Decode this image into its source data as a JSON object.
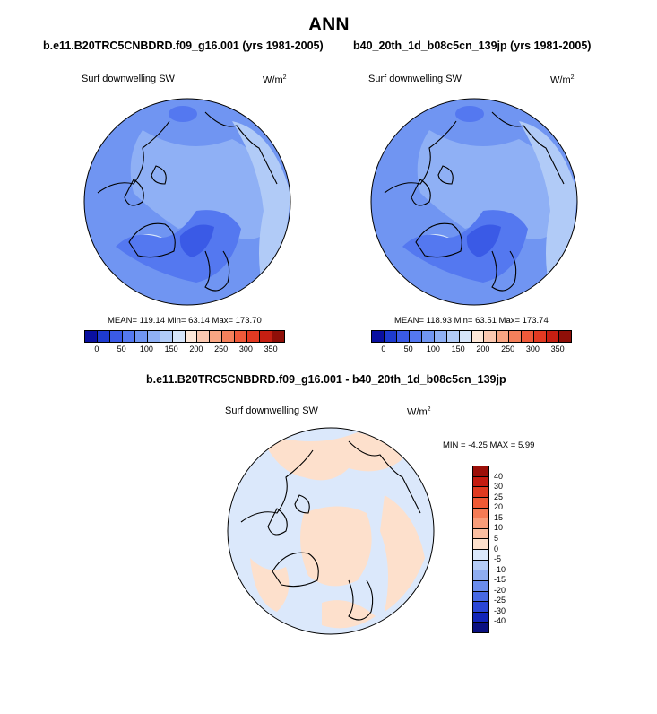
{
  "page": {
    "season": "ANN"
  },
  "panel1": {
    "case_title": "b.e11.B20TRC5CNBDRD.f09_g16.001 (yrs 1981-2005)",
    "variable": "Surf downwelling SW",
    "units_base": "W/m",
    "units_exp": "2",
    "stats": "MEAN= 119.14  Min=  63.14  Max= 173.70"
  },
  "panel2": {
    "case_title": "b40_20th_1d_b08c5cn_139jp (yrs 1981-2005)",
    "variable": "Surf downwelling SW",
    "units_base": "W/m",
    "units_exp": "2",
    "stats": "MEAN= 118.93  Min=  63.51  Max= 173.74"
  },
  "diff": {
    "title": "b.e11.B20TRC5CNBDRD.f09_g16.001 - b40_20th_1d_b08c5cn_139jp",
    "variable": "Surf downwelling SW",
    "units_base": "W/m",
    "units_exp": "2",
    "stats": "MIN =  -4.25 MAX =   5.99"
  },
  "colorbar_main": {
    "ticks": [
      "0",
      "50",
      "100",
      "150",
      "200",
      "250",
      "300",
      "350"
    ],
    "colors": [
      "#0a10a0",
      "#1e3bd0",
      "#3a5ae6",
      "#5478f0",
      "#7095f2",
      "#8fb0f5",
      "#b1cbf7",
      "#d6e5fa",
      "#fde7d8",
      "#fbc8b0",
      "#f8a583",
      "#f4805b",
      "#ef5a3a",
      "#e23a22",
      "#c51f12",
      "#8f0f08"
    ]
  },
  "colorbar_diff": {
    "ticks": [
      "40",
      "30",
      "25",
      "20",
      "15",
      "10",
      "5",
      "0",
      "-5",
      "-10",
      "-15",
      "-20",
      "-25",
      "-30",
      "-40"
    ],
    "colors": [
      "#9b0e08",
      "#c41b10",
      "#e03a20",
      "#f05a35",
      "#f57b55",
      "#f89d7a",
      "#fbbfa2",
      "#fde0cc",
      "#dbe8fb",
      "#b5ccf6",
      "#8fadf1",
      "#6a8cec",
      "#4769e4",
      "#2a46d6",
      "#1225b8",
      "#0a1080"
    ]
  },
  "map_colors": {
    "main_base": "#7095f2",
    "main_light": "#8fb0f5",
    "main_lighter": "#b1cbf7",
    "main_pale": "#d6e5fa",
    "main_dark": "#5478f0",
    "main_darker": "#3a5ae6",
    "diff_neg": "#dbe8fb",
    "diff_pos": "#fde0cc"
  }
}
